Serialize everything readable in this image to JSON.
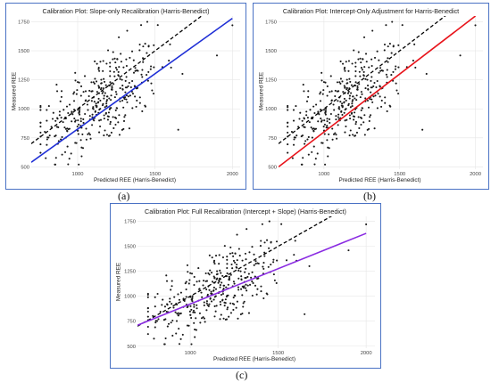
{
  "captions": {
    "a": "(a)",
    "b": "(b)",
    "c": "(c)"
  },
  "style": {
    "point_color": "#1a1a1a",
    "ref_line_color": "#000000",
    "panel_border": "#4a72c4"
  },
  "chart_data": [
    {
      "type": "scatter",
      "title": "Calibration Plot: Slope-only Recalibration (Harris-Benedict)",
      "xlabel": "Predicted REE (Harris-Benedict)",
      "ylabel": "Measured REE",
      "xlim": [
        700,
        2050
      ],
      "ylim": [
        480,
        1800
      ],
      "xticks": [
        1000,
        1500,
        2000
      ],
      "yticks": [
        500,
        750,
        1000,
        1250,
        1500,
        1750
      ],
      "grid": true,
      "reference_line": {
        "style": "dashed",
        "color": "#000000",
        "slope": 1,
        "intercept": 0
      },
      "fit_line": {
        "color": "#1f2fd6",
        "points": [
          [
            700,
            540
          ],
          [
            2000,
            1780
          ]
        ]
      }
    },
    {
      "type": "scatter",
      "title": "Calibration Plot: Intercept-Only Adjustment for Harris-Benedict",
      "xlabel": "Predicted REE (Harris-Benedict)",
      "ylabel": "Measured REE",
      "xlim": [
        700,
        2050
      ],
      "ylim": [
        480,
        1800
      ],
      "xticks": [
        1000,
        1500,
        2000
      ],
      "yticks": [
        500,
        750,
        1000,
        1250,
        1500,
        1750
      ],
      "grid": true,
      "reference_line": {
        "style": "dashed",
        "color": "#000000",
        "slope": 1,
        "intercept": 0
      },
      "fit_line": {
        "color": "#e8141b",
        "points": [
          [
            700,
            500
          ],
          [
            2000,
            1800
          ]
        ]
      }
    },
    {
      "type": "scatter",
      "title": "Calibration Plot: Full Recalibration (Intercept + Slope) (Harris-Benedict)",
      "xlabel": "Predicted REE (Harris-Benedict)",
      "ylabel": "Measured REE",
      "xlim": [
        700,
        2050
      ],
      "ylim": [
        480,
        1800
      ],
      "xticks": [
        1000,
        1500,
        2000
      ],
      "yticks": [
        500,
        750,
        1000,
        1250,
        1500,
        1750
      ],
      "grid": true,
      "reference_line": {
        "style": "dashed",
        "color": "#000000",
        "slope": 1,
        "intercept": 0
      },
      "fit_line": {
        "color": "#8a2be2",
        "points": [
          [
            700,
            710
          ],
          [
            2000,
            1630
          ]
        ]
      }
    }
  ]
}
